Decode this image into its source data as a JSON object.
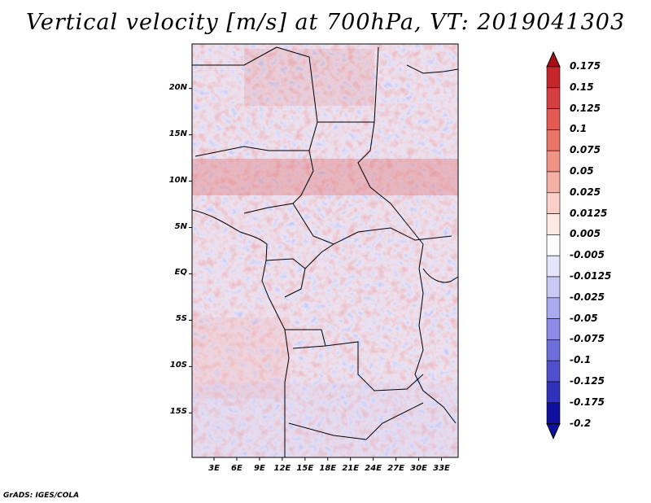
{
  "title": "Vertical velocity [m/s] at 700hPa, VT: 2019041303",
  "credit": "GrADS: IGES/COLA",
  "lat_axis": {
    "ticks": [
      {
        "value": 20,
        "label": "20N"
      },
      {
        "value": 15,
        "label": "15N"
      },
      {
        "value": 10,
        "label": "10N"
      },
      {
        "value": 5,
        "label": "5N"
      },
      {
        "value": 0,
        "label": "EQ"
      },
      {
        "value": -5,
        "label": "5S"
      },
      {
        "value": -10,
        "label": "10S"
      },
      {
        "value": -15,
        "label": "15S"
      }
    ]
  },
  "lon_axis": {
    "ticks": [
      {
        "value": 3,
        "label": "3E"
      },
      {
        "value": 6,
        "label": "6E"
      },
      {
        "value": 9,
        "label": "9E"
      },
      {
        "value": 12,
        "label": "12E"
      },
      {
        "value": 15,
        "label": "15E"
      },
      {
        "value": 18,
        "label": "18E"
      },
      {
        "value": 21,
        "label": "21E"
      },
      {
        "value": 24,
        "label": "24E"
      },
      {
        "value": 27,
        "label": "27E"
      },
      {
        "value": 30,
        "label": "30E"
      },
      {
        "value": 33,
        "label": "33E"
      }
    ]
  },
  "colorbar": {
    "labels": [
      "0.175",
      "0.15",
      "0.125",
      "0.1",
      "0.075",
      "0.05",
      "0.025",
      "0.0125",
      "0.005",
      "-0.005",
      "-0.0125",
      "-0.025",
      "-0.05",
      "-0.075",
      "-0.1",
      "-0.125",
      "-0.175",
      "-0.2"
    ],
    "colors": [
      "#a50f15",
      "#c4262c",
      "#d63f3f",
      "#e35a52",
      "#ea7566",
      "#f09284",
      "#f5b0a5",
      "#f9cfc7",
      "#fde9e4",
      "#ffffff",
      "#e4e4fb",
      "#c8c8f5",
      "#aaaaee",
      "#8c8ce6",
      "#6e6edc",
      "#5050cc",
      "#3030b8",
      "#1010a0"
    ]
  }
}
